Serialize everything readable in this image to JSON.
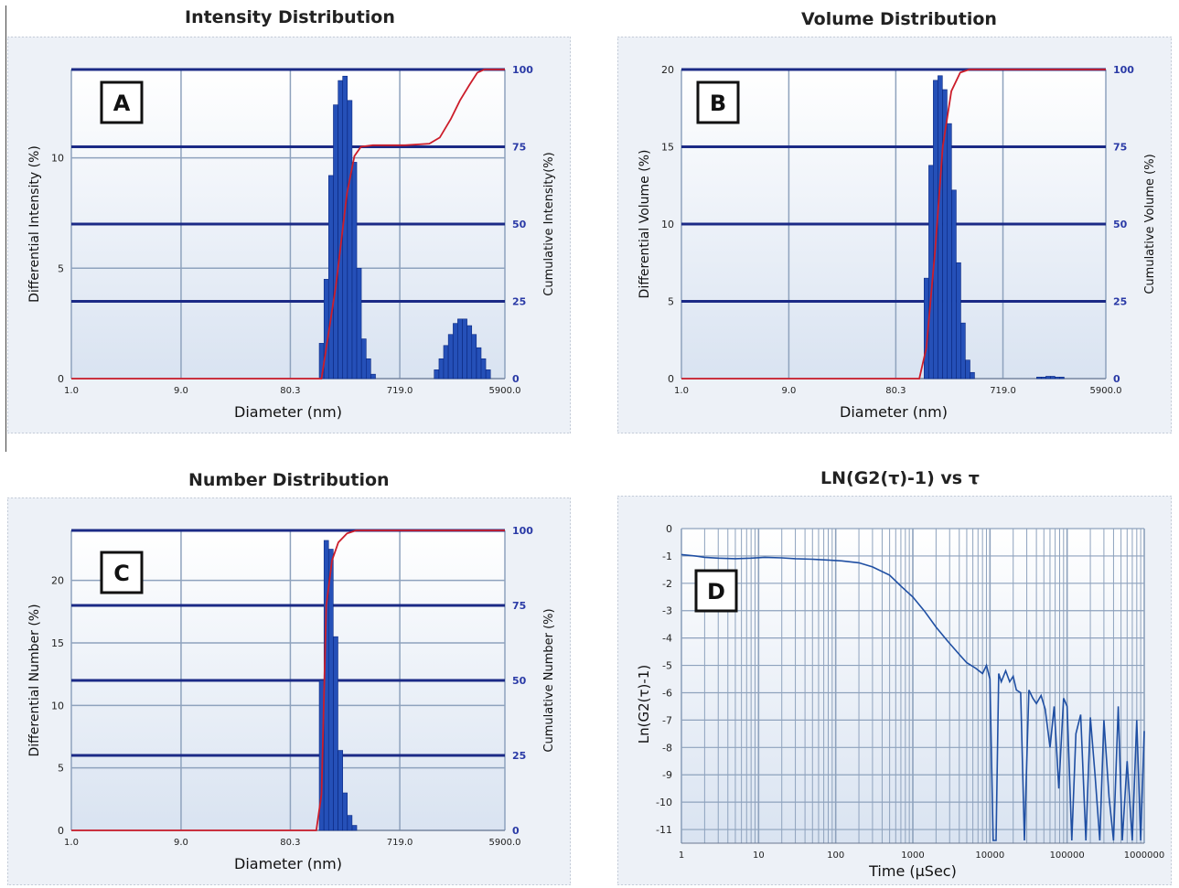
{
  "colors": {
    "plot_bg_top": "#ffffff",
    "plot_bg_bottom": "#d9e3f1",
    "frame_outer": "#edf1f7",
    "grid_light": "#8ea2bd",
    "grid_dark": "#1b2a86",
    "bar": "#2550b8",
    "bar_edge": "#0c2a83",
    "cumulative_line": "#cc1d2a",
    "right_tick": "#2a3aa6",
    "correlogram_line": "#1f4fa3"
  },
  "chart_data": [
    {
      "id": "A",
      "type": "bar",
      "title": "Intensity Distribution",
      "panel_label": "A",
      "xlabel": "Diameter (nm)",
      "ylabel": "Differential Intensity (%)",
      "y2label": "Cumulative Intensity(%)",
      "xscale": "log",
      "xlim": [
        1.0,
        5900.0
      ],
      "xticks": [
        1.0,
        9.0,
        80.3,
        719.0,
        5900.0
      ],
      "xtick_labels": [
        "1.0",
        "9.0",
        "80.3",
        "719.0",
        "5900.0"
      ],
      "ylim": [
        0,
        14
      ],
      "yticks": [
        0,
        5,
        10
      ],
      "y2lim": [
        0,
        100
      ],
      "y2ticks": [
        0,
        25,
        50,
        75,
        100
      ],
      "grid": true,
      "bars": {
        "x": [
          150,
          165,
          181,
          199,
          219,
          240,
          264,
          290,
          318,
          350,
          384,
          422,
          1500,
          1650,
          1810,
          1990,
          2190,
          2400,
          2640,
          2900,
          3180,
          3500,
          3840,
          4220
        ],
        "y": [
          1.6,
          4.5,
          9.2,
          12.4,
          13.5,
          13.7,
          12.6,
          9.8,
          5.0,
          1.8,
          0.9,
          0.2,
          0.4,
          0.9,
          1.5,
          2.0,
          2.5,
          2.7,
          2.7,
          2.4,
          2.0,
          1.4,
          0.9,
          0.4
        ]
      },
      "cumulative": {
        "x": [
          1.0,
          150,
          200,
          250,
          290,
          330,
          420,
          800,
          1300,
          1600,
          2000,
          2400,
          2900,
          3400,
          3900,
          5900
        ],
        "y": [
          0,
          0,
          30,
          60,
          72,
          75,
          75.5,
          75.5,
          76,
          78,
          84,
          90,
          95,
          99,
          100,
          100
        ]
      }
    },
    {
      "id": "B",
      "type": "bar",
      "title": "Volume Distribution",
      "panel_label": "B",
      "xlabel": "Diameter (nm)",
      "ylabel": "Differential Volume (%)",
      "y2label": "Cumulative Volume (%)",
      "xscale": "log",
      "xlim": [
        1.0,
        5900.0
      ],
      "xticks": [
        1.0,
        9.0,
        80.3,
        719.0,
        5900.0
      ],
      "xtick_labels": [
        "1.0",
        "9.0",
        "80.3",
        "719.0",
        "5900.0"
      ],
      "ylim": [
        0,
        20
      ],
      "yticks": [
        0,
        5,
        10,
        15,
        20
      ],
      "y2lim": [
        0,
        100
      ],
      "y2ticks": [
        0,
        25,
        50,
        75,
        100
      ],
      "grid": true,
      "bars": {
        "x": [
          150,
          165,
          181,
          199,
          219,
          240,
          264,
          290,
          318,
          350,
          384,
          1500,
          1650,
          1810,
          1990,
          2190,
          2400
        ],
        "y": [
          6.5,
          13.8,
          19.3,
          19.6,
          18.7,
          16.5,
          12.2,
          7.5,
          3.6,
          1.2,
          0.4,
          0.1,
          0.1,
          0.15,
          0.15,
          0.1,
          0.1
        ]
      },
      "cumulative": {
        "x": [
          1.0,
          130,
          150,
          180,
          210,
          250,
          300,
          360,
          450,
          5900
        ],
        "y": [
          0,
          0,
          10,
          42,
          75,
          93,
          99,
          100,
          100,
          100
        ]
      }
    },
    {
      "id": "C",
      "type": "bar",
      "title": "Number Distribution",
      "panel_label": "C",
      "xlabel": "Diameter (nm)",
      "ylabel": "Differential Number (%)",
      "y2label": "Cumulative Number (%)",
      "xscale": "log",
      "xlim": [
        1.0,
        5900.0
      ],
      "xticks": [
        1.0,
        9.0,
        80.3,
        719.0,
        5900.0
      ],
      "xtick_labels": [
        "1.0",
        "9.0",
        "80.3",
        "719.0",
        "5900.0"
      ],
      "ylim": [
        0,
        24
      ],
      "yticks": [
        0,
        5,
        10,
        15,
        20
      ],
      "y2lim": [
        0,
        100
      ],
      "y2ticks": [
        0,
        25,
        50,
        75,
        100
      ],
      "grid": true,
      "bars": {
        "x": [
          150,
          165,
          181,
          199,
          219,
          240,
          264,
          290
        ],
        "y": [
          12.0,
          23.2,
          22.5,
          15.5,
          6.4,
          3.0,
          1.2,
          0.4
        ]
      },
      "cumulative": {
        "x": [
          1.0,
          135,
          150,
          165,
          185,
          210,
          250,
          300,
          5900
        ],
        "y": [
          0,
          0,
          12,
          75,
          90,
          96,
          99,
          100,
          100
        ]
      }
    },
    {
      "id": "D",
      "type": "line",
      "title": "LN(G2(τ)-1) vs τ",
      "panel_label": "D",
      "xlabel": "Time (μSec)",
      "ylabel": "Ln(G2(τ)-1)",
      "xscale": "log",
      "xlim": [
        1,
        1000000
      ],
      "xticks": [
        1,
        10,
        100,
        1000,
        10000,
        100000,
        1000000
      ],
      "xtick_labels": [
        "1",
        "10",
        "100",
        "1000",
        "10000",
        "100000",
        "1000000"
      ],
      "ylim": [
        -11.5,
        0
      ],
      "yticks": [
        0,
        -1,
        -2,
        -3,
        -4,
        -5,
        -6,
        -7,
        -8,
        -9,
        -10,
        -11
      ],
      "grid": true,
      "series": [
        {
          "x": [
            1,
            1.5,
            2,
            3,
            5,
            8,
            12,
            20,
            30,
            50,
            80,
            120,
            200,
            300,
            500,
            700,
            1000,
            1400,
            2000,
            2800,
            4000,
            5000,
            6500,
            8000,
            9000,
            10000,
            11000,
            12000,
            13000,
            14000,
            16000,
            18000,
            20000,
            22000,
            25000,
            28000,
            32000,
            36000,
            40000,
            46000,
            52000,
            60000,
            68000,
            78000,
            90000,
            100000,
            115000,
            130000,
            150000,
            175000,
            200000,
            230000,
            265000,
            300000,
            350000,
            400000,
            460000,
            520000,
            600000,
            700000,
            800000,
            900000,
            1000000
          ],
          "y": [
            -0.95,
            -1.0,
            -1.05,
            -1.08,
            -1.1,
            -1.08,
            -1.05,
            -1.07,
            -1.1,
            -1.12,
            -1.15,
            -1.18,
            -1.25,
            -1.4,
            -1.7,
            -2.1,
            -2.5,
            -3.0,
            -3.6,
            -4.1,
            -4.6,
            -4.9,
            -5.1,
            -5.3,
            -5.0,
            -5.5,
            -11.4,
            -11.4,
            -5.3,
            -5.6,
            -5.2,
            -5.6,
            -5.4,
            -5.9,
            -6.0,
            -11.4,
            -5.9,
            -6.2,
            -6.4,
            -6.1,
            -6.6,
            -8.0,
            -6.5,
            -9.5,
            -6.2,
            -6.5,
            -11.4,
            -7.5,
            -6.8,
            -11.4,
            -6.9,
            -9.0,
            -11.4,
            -7.0,
            -9.8,
            -11.4,
            -6.5,
            -11.4,
            -8.5,
            -11.4,
            -7.0,
            -11.4,
            -7.4
          ]
        }
      ]
    }
  ]
}
